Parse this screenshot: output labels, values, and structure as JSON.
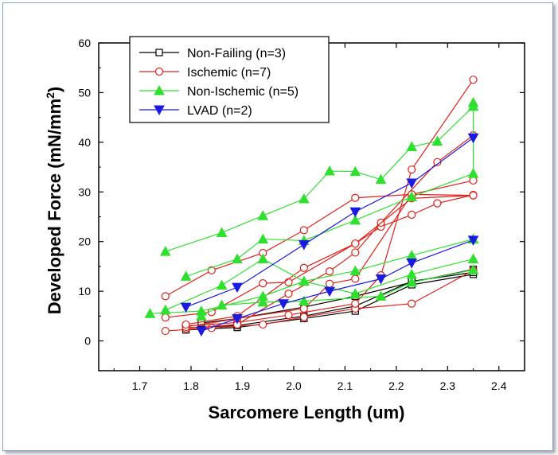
{
  "chart_data": {
    "type": "line",
    "title": "",
    "xlabel": "Sarcomere Length (um)",
    "ylabel": "Developed Force (mN/mm",
    "ylabel_sup": "2",
    "ylabel_close": ")",
    "xlim": [
      1.62,
      2.45
    ],
    "ylim": [
      -6,
      60
    ],
    "xticks": [
      1.7,
      1.8,
      1.9,
      2.0,
      2.1,
      2.2,
      2.3,
      2.4
    ],
    "yticks": [
      0,
      10,
      20,
      30,
      40,
      50,
      60
    ],
    "xtick_labels": [
      "1.7",
      "1.8",
      "1.9",
      "2.0",
      "2.1",
      "2.2",
      "2.3",
      "2.4"
    ],
    "ytick_labels": [
      "0",
      "10",
      "20",
      "30",
      "40",
      "50",
      "60"
    ],
    "legend_position": "top-left",
    "series": [
      {
        "name": "Non-Failing (n=3)",
        "color": "#000000",
        "marker": "square",
        "lines": [
          [
            [
              1.79,
              2.2
            ],
            [
              1.89,
              2.7
            ],
            [
              2.02,
              4.5
            ],
            [
              2.12,
              6.0
            ],
            [
              2.23,
              11.3
            ],
            [
              2.35,
              13.4
            ]
          ],
          [
            [
              1.82,
              3.6
            ],
            [
              1.89,
              4.5
            ],
            [
              2.02,
              6.8
            ],
            [
              2.12,
              9.0
            ],
            [
              2.23,
              11.8
            ],
            [
              2.35,
              14.4
            ]
          ],
          [
            [
              1.79,
              2.6
            ],
            [
              1.89,
              3.1
            ],
            [
              2.02,
              5.0
            ],
            [
              2.12,
              7.0
            ],
            [
              2.23,
              12.0
            ],
            [
              2.35,
              13.8
            ]
          ]
        ]
      },
      {
        "name": "Ischemic (n=7)",
        "color": "#e0201a",
        "marker": "circle",
        "lines": [
          [
            [
              1.75,
              9.0
            ],
            [
              1.84,
              14.2
            ],
            [
              1.94,
              17.7
            ],
            [
              2.02,
              22.3
            ],
            [
              2.12,
              28.8
            ],
            [
              2.23,
              29.5
            ],
            [
              2.35,
              29.3
            ]
          ],
          [
            [
              1.75,
              4.7
            ],
            [
              1.84,
              5.8
            ],
            [
              1.94,
              11.6
            ],
            [
              1.99,
              11.8
            ],
            [
              2.12,
              19.6
            ],
            [
              2.17,
              23.0
            ],
            [
              2.23,
              25.4
            ],
            [
              2.28,
              27.7
            ],
            [
              2.35,
              29.4
            ]
          ],
          [
            [
              1.75,
              2.0
            ],
            [
              1.84,
              2.6
            ],
            [
              1.94,
              3.3
            ],
            [
              2.02,
              4.8
            ],
            [
              2.12,
              6.5
            ],
            [
              2.23,
              7.5
            ],
            [
              2.35,
              14.2
            ]
          ],
          [
            [
              1.79,
              3.0
            ],
            [
              1.89,
              3.7
            ],
            [
              1.99,
              5.2
            ],
            [
              2.12,
              7.5
            ],
            [
              2.17,
              13.2
            ],
            [
              2.23,
              34.5
            ],
            [
              2.35,
              52.6
            ]
          ],
          [
            [
              1.79,
              2.5
            ],
            [
              1.89,
              3.3
            ],
            [
              1.99,
              9.5
            ],
            [
              2.07,
              14.0
            ],
            [
              2.12,
              17.8
            ],
            [
              2.17,
              23.8
            ],
            [
              2.28,
              36.0
            ],
            [
              2.35,
              41.4
            ]
          ],
          [
            [
              1.79,
              2.8
            ],
            [
              1.89,
              4.5
            ],
            [
              2.02,
              6.5
            ],
            [
              2.07,
              11.5
            ],
            [
              2.12,
              12.5
            ],
            [
              2.23,
              29.5
            ],
            [
              2.35,
              32.3
            ]
          ],
          [
            [
              1.79,
              3.3
            ],
            [
              1.89,
              5.0
            ],
            [
              2.02,
              14.7
            ],
            [
              2.12,
              19.6
            ],
            [
              2.23,
              28.7
            ],
            [
              2.35,
              29.3
            ]
          ]
        ]
      },
      {
        "name": "Non-Ischemic (n=5)",
        "color": "#2fe02f",
        "marker": "triangle-up",
        "lines": [
          [
            [
              1.75,
              18.0
            ],
            [
              1.86,
              21.8
            ],
            [
              1.94,
              25.2
            ],
            [
              2.02,
              28.6
            ],
            [
              2.07,
              34.2
            ],
            [
              2.12,
              34.1
            ],
            [
              2.17,
              32.5
            ],
            [
              2.23,
              39.1
            ],
            [
              2.28,
              40.2
            ],
            [
              2.35,
              47.2
            ]
          ],
          [
            [
              1.79,
              13.0
            ],
            [
              1.89,
              16.5
            ],
            [
              1.94,
              20.5
            ],
            [
              2.02,
              20.2
            ],
            [
              2.12,
              24.3
            ],
            [
              2.23,
              29.0
            ],
            [
              2.35,
              33.7
            ],
            [
              2.35,
              48.0
            ]
          ],
          [
            [
              1.75,
              6.2
            ],
            [
              1.86,
              11.2
            ],
            [
              1.94,
              16.5
            ],
            [
              2.02,
              12.0
            ],
            [
              2.12,
              14.1
            ],
            [
              2.23,
              17.2
            ],
            [
              2.35,
              20.5
            ]
          ],
          [
            [
              1.72,
              5.5
            ],
            [
              1.82,
              6.0
            ],
            [
              1.94,
              9.0
            ],
            [
              2.02,
              12.0
            ],
            [
              2.12,
              9.5
            ],
            [
              2.23,
              13.4
            ],
            [
              2.35,
              16.5
            ]
          ],
          [
            [
              1.82,
              5.0
            ],
            [
              1.86,
              7.2
            ],
            [
              1.94,
              7.8
            ],
            [
              2.02,
              8.0
            ],
            [
              2.17,
              9.0
            ],
            [
              2.23,
              11.8
            ],
            [
              2.35,
              14.3
            ]
          ]
        ]
      },
      {
        "name": "LVAD (n=2)",
        "color": "#1a1ae0",
        "marker": "triangle-down",
        "lines": [
          [
            [
              1.79,
              6.8
            ],
            [
              1.89,
              10.8
            ],
            [
              2.02,
              19.4
            ],
            [
              2.12,
              26.0
            ],
            [
              2.23,
              31.8
            ],
            [
              2.35,
              40.9
            ]
          ],
          [
            [
              1.82,
              2.0
            ],
            [
              1.89,
              4.5
            ],
            [
              1.98,
              7.5
            ],
            [
              2.07,
              10.0
            ],
            [
              2.17,
              12.5
            ],
            [
              2.23,
              15.7
            ],
            [
              2.35,
              20.3
            ]
          ]
        ]
      }
    ]
  }
}
